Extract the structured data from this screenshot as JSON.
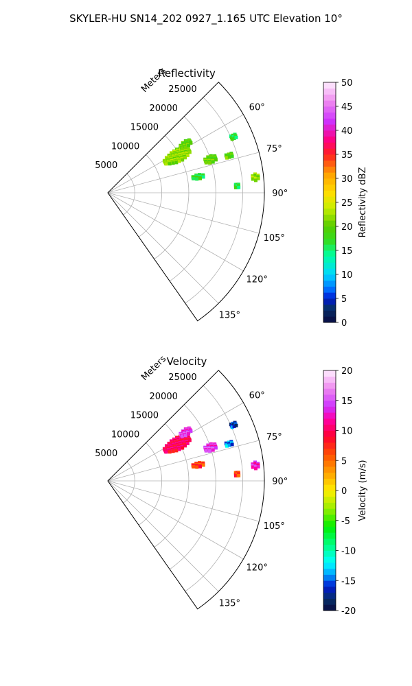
{
  "chart_data": [
    {
      "type": "heatmap",
      "title": "Reflectivity",
      "suptitle": "SKYLER-HU  SN14_202  0927_1.165 UTC Elevation 10°",
      "radial_label": "Meters",
      "r_ticks": [
        5000,
        10000,
        15000,
        20000,
        25000
      ],
      "r_max": 29000,
      "theta_min_deg": 45,
      "theta_max_deg": 145,
      "theta_tick_labels": [
        "60°",
        "75°",
        "90°",
        "105°",
        "120°",
        "135°"
      ],
      "theta_ticks_deg": [
        60,
        75,
        90,
        105,
        120,
        135
      ],
      "colorbar": {
        "label": "Reflectivity dBZ",
        "vmin": 0,
        "vmax": 50,
        "ticks": [
          0,
          5,
          10,
          15,
          20,
          25,
          30,
          35,
          40,
          45,
          50
        ]
      },
      "echo_regions": [
        {
          "az": 62,
          "range_m": 14500,
          "value": 22,
          "az_width": 9,
          "range_width": 5500
        },
        {
          "az": 58,
          "range_m": 17000,
          "value": 20,
          "az_width": 4,
          "range_width": 2500
        },
        {
          "az": 72,
          "range_m": 20000,
          "value": 20,
          "az_width": 4,
          "range_width": 2500
        },
        {
          "az": 80,
          "range_m": 17000,
          "value": 17,
          "az_width": 3,
          "range_width": 2500
        },
        {
          "az": 73,
          "range_m": 23500,
          "value": 20,
          "az_width": 2,
          "range_width": 1500
        },
        {
          "az": 66,
          "range_m": 25500,
          "value": 17,
          "az_width": 2,
          "range_width": 1200
        },
        {
          "az": 84,
          "range_m": 27500,
          "value": 22,
          "az_width": 3,
          "range_width": 1500
        },
        {
          "az": 87,
          "range_m": 24000,
          "value": 17,
          "az_width": 2,
          "range_width": 800
        }
      ]
    },
    {
      "type": "heatmap",
      "title": "Velocity",
      "radial_label": "Meters",
      "r_ticks": [
        5000,
        10000,
        15000,
        20000,
        25000
      ],
      "r_max": 29000,
      "theta_min_deg": 45,
      "theta_max_deg": 145,
      "theta_tick_labels": [
        "60°",
        "75°",
        "90°",
        "105°",
        "120°",
        "135°"
      ],
      "theta_ticks_deg": [
        60,
        75,
        90,
        105,
        120,
        135
      ],
      "colorbar": {
        "label": "Velocity (m/s)",
        "vmin": -20,
        "vmax": 20,
        "ticks": [
          -20,
          -15,
          -10,
          -5,
          0,
          5,
          10,
          15,
          20
        ]
      },
      "echo_regions": [
        {
          "az": 62,
          "range_m": 14500,
          "value": 10,
          "az_width": 9,
          "range_width": 5500
        },
        {
          "az": 58,
          "range_m": 17000,
          "value": 14,
          "az_width": 4,
          "range_width": 2500
        },
        {
          "az": 72,
          "range_m": 20000,
          "value": 14,
          "az_width": 4,
          "range_width": 2500
        },
        {
          "az": 80,
          "range_m": 17000,
          "value": 7,
          "az_width": 3,
          "range_width": 2500
        },
        {
          "az": 73,
          "range_m": 23500,
          "value": -14,
          "az_width": 2,
          "range_width": 1500
        },
        {
          "az": 66,
          "range_m": 25500,
          "value": -16,
          "az_width": 2,
          "range_width": 1200
        },
        {
          "az": 84,
          "range_m": 27500,
          "value": 13,
          "az_width": 3,
          "range_width": 1500
        },
        {
          "az": 87,
          "range_m": 24000,
          "value": 7,
          "az_width": 2,
          "range_width": 800
        }
      ]
    }
  ]
}
